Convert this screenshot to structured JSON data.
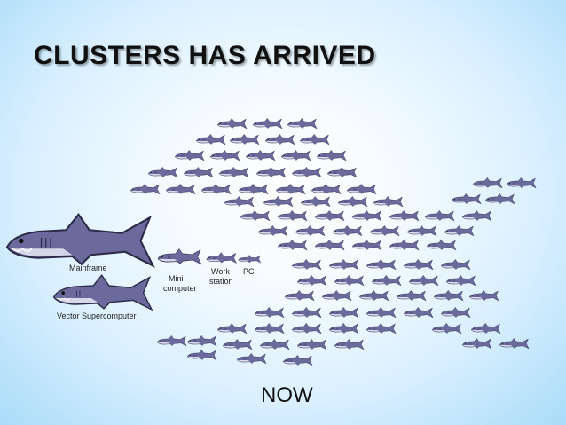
{
  "slide": {
    "title": "CLUSTERS HAS ARRIVED",
    "caption": "NOW"
  },
  "labels": {
    "mainframe": "Mainframe",
    "mini_line1": "Mini-",
    "mini_line2": "computer",
    "work_line1": "Work-",
    "work_line2": "station",
    "pc": "PC",
    "vector": "Vector Supercomputer"
  },
  "colors": {
    "shark_body": "#6a6a9c",
    "shark_belly": "#d6d6e8",
    "shark_outline": "#2c2c4a",
    "background_center": "#ffffff",
    "background_edge": "#a9dcf8"
  }
}
